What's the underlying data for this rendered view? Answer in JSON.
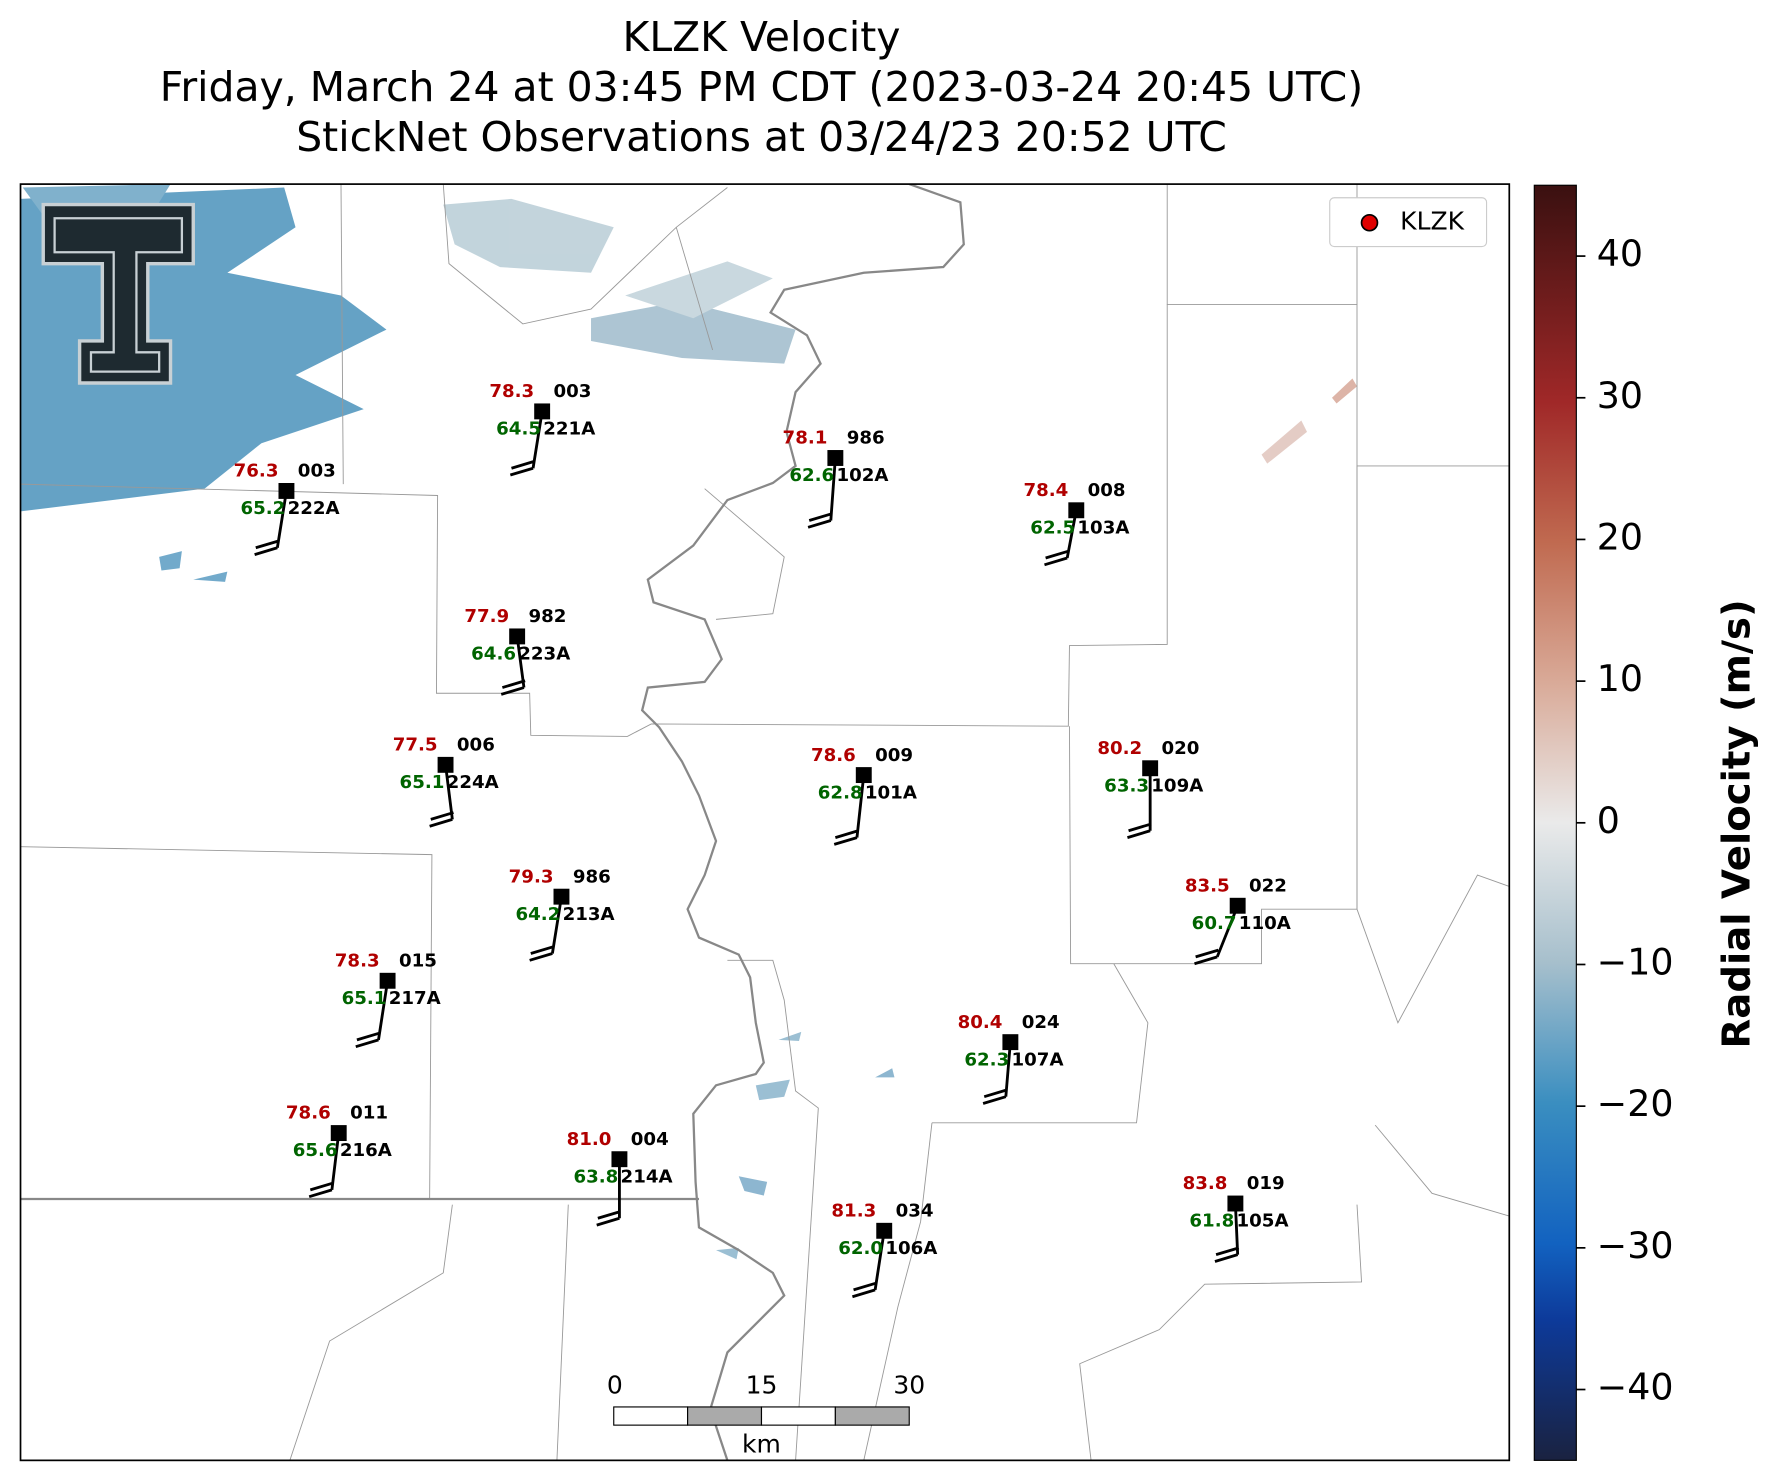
{
  "header": {
    "title": "KLZK Velocity",
    "subtitle": "Friday, March 24 at 03:45 PM CDT (2023-03-24 20:45 UTC)",
    "observations": "StickNet Observations at 03/24/23 20:52 UTC"
  },
  "legend": {
    "label": "KLZK",
    "color": "#e00000"
  },
  "stations": [
    {
      "id": "221A",
      "temperature": "78.3",
      "pressure": "003",
      "dewpoint": "64.5"
    },
    {
      "id": "222A",
      "temperature": "76.3",
      "pressure": "003",
      "dewpoint": "65.2"
    },
    {
      "id": "102A",
      "temperature": "78.1",
      "pressure": "986",
      "dewpoint": "62.6"
    },
    {
      "id": "103A",
      "temperature": "78.4",
      "pressure": "008",
      "dewpoint": "62.5"
    },
    {
      "id": "223A",
      "temperature": "77.9",
      "pressure": "982",
      "dewpoint": "64.6"
    },
    {
      "id": "224A",
      "temperature": "77.5",
      "pressure": "006",
      "dewpoint": "65.1"
    },
    {
      "id": "101A",
      "temperature": "78.6",
      "pressure": "009",
      "dewpoint": "62.8"
    },
    {
      "id": "109A",
      "temperature": "80.2",
      "pressure": "020",
      "dewpoint": "63.3"
    },
    {
      "id": "213A",
      "temperature": "79.3",
      "pressure": "986",
      "dewpoint": "64.2"
    },
    {
      "id": "110A",
      "temperature": "83.5",
      "pressure": "022",
      "dewpoint": "60.7"
    },
    {
      "id": "217A",
      "temperature": "78.3",
      "pressure": "015",
      "dewpoint": "65.1"
    },
    {
      "id": "107A",
      "temperature": "80.4",
      "pressure": "024",
      "dewpoint": "62.3"
    },
    {
      "id": "216A",
      "temperature": "78.6",
      "pressure": "011",
      "dewpoint": "65.6"
    },
    {
      "id": "214A",
      "temperature": "81.0",
      "pressure": "004",
      "dewpoint": "63.8"
    },
    {
      "id": "106A",
      "temperature": "81.3",
      "pressure": "034",
      "dewpoint": "62.0"
    },
    {
      "id": "105A",
      "temperature": "83.8",
      "pressure": "019",
      "dewpoint": "61.8"
    }
  ],
  "scale_bar": {
    "ticks": [
      "0",
      "15",
      "30"
    ],
    "unit": "km"
  },
  "colorbar": {
    "label": "Radial Velocity (m/s)",
    "range": [
      -45,
      45
    ],
    "ticks": [
      {
        "value": 40,
        "label": "40"
      },
      {
        "value": 30,
        "label": "30"
      },
      {
        "value": 20,
        "label": "20"
      },
      {
        "value": 10,
        "label": "10"
      },
      {
        "value": 0,
        "label": "0"
      },
      {
        "value": -10,
        "label": "−10"
      },
      {
        "value": -20,
        "label": "−20"
      },
      {
        "value": -30,
        "label": "−30"
      },
      {
        "value": -40,
        "label": "−40"
      }
    ]
  }
}
